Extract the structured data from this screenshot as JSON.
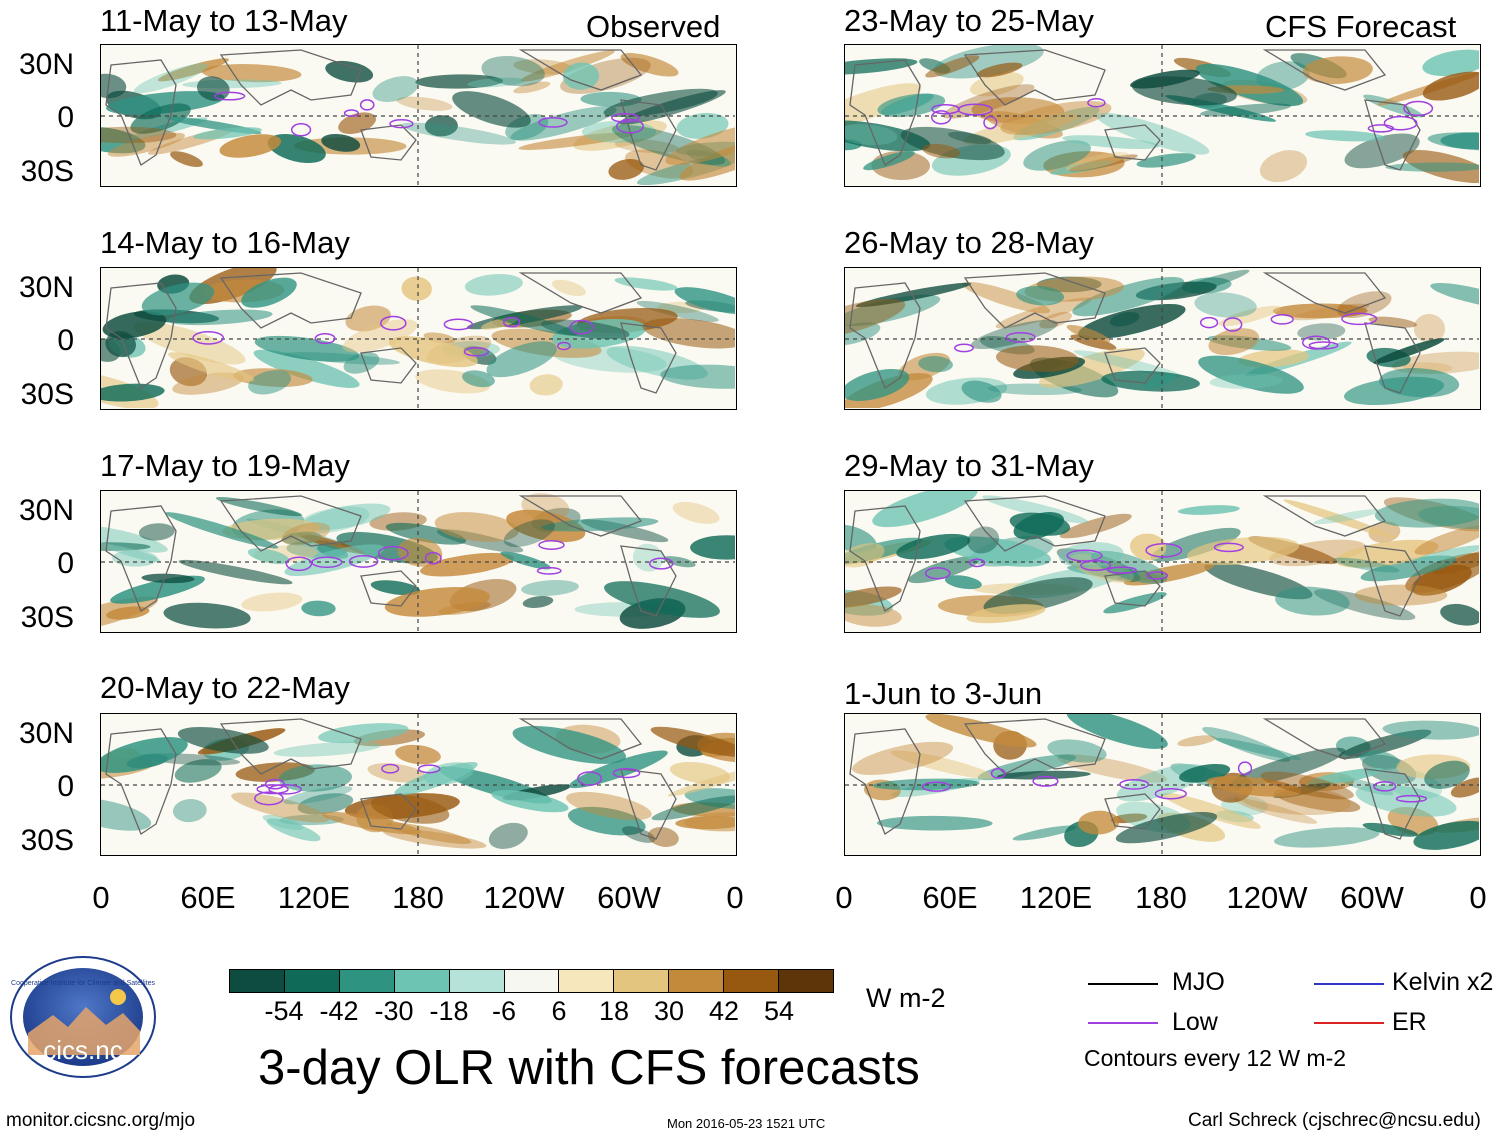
{
  "headers": {
    "observed": "Observed",
    "forecast": "CFS Forecast"
  },
  "panels": [
    {
      "title": "11-May to 13-May"
    },
    {
      "title": "14-May to 16-May"
    },
    {
      "title": "17-May to 19-May"
    },
    {
      "title": "20-May to 22-May"
    },
    {
      "title": "23-May to 25-May"
    },
    {
      "title": "26-May to 28-May"
    },
    {
      "title": "29-May to 31-May"
    },
    {
      "title": "1-Jun to 3-Jun"
    }
  ],
  "lat_labels": [
    "30N",
    "0",
    "30S"
  ],
  "lon_labels": [
    "0",
    "60E",
    "120E",
    "180",
    "120W",
    "60W",
    "0"
  ],
  "colorbar": {
    "colors": [
      "#0d4c3e",
      "#0f6b58",
      "#2f9382",
      "#6ec4b3",
      "#b6e3d9",
      "#f7f7f2",
      "#f6e7bd",
      "#e4c580",
      "#c48a3c",
      "#97580f",
      "#5e3508"
    ],
    "labels": [
      "-54",
      "-42",
      "-30",
      "-18",
      "-6",
      "6",
      "18",
      "30",
      "42",
      "54"
    ],
    "units": "W m-2"
  },
  "title": "3-day OLR with CFS forecasts",
  "logo": {
    "text": "cics.nc",
    "arc_text": "Cooperative Institute for Climate and Satellites"
  },
  "legend": {
    "items": [
      {
        "label": "MJO",
        "color": "#000000"
      },
      {
        "label": "Kelvin x2",
        "color": "#3333cc"
      },
      {
        "label": "Low",
        "color": "#a040e0"
      },
      {
        "label": "ER",
        "color": "#dd2222"
      }
    ],
    "note": "Contours every 12 W m-2"
  },
  "footer": {
    "url": "monitor.cicsnc.org/mjo",
    "timestamp": "Mon 2016-05-23 1521 UTC",
    "author": "Carl Schreck (cjschrec@ncsu.edu)"
  }
}
